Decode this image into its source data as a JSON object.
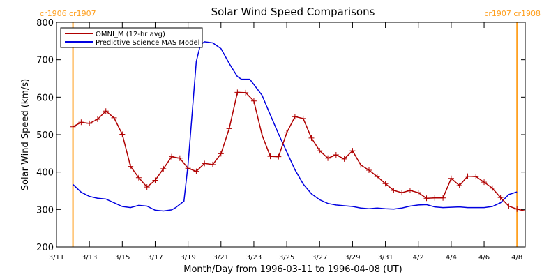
{
  "chart_data": {
    "type": "line",
    "title": "Solar Wind Speed Comparisons",
    "xlabel": "Month/Day from 1996-03-11 to 1996-04-08 (UT)",
    "ylabel": "Solar Wind Speed (km/s)",
    "xlim": [
      "1996-03-11",
      "1996-04-08T12:00"
    ],
    "ylim": [
      200,
      800
    ],
    "grid": false,
    "legend_position": "top-left",
    "x_ticks": [
      {
        "x": "1996-03-11",
        "label": "3/11"
      },
      {
        "x": "1996-03-13",
        "label": "3/13"
      },
      {
        "x": "1996-03-15",
        "label": "3/15"
      },
      {
        "x": "1996-03-17",
        "label": "3/17"
      },
      {
        "x": "1996-03-19",
        "label": "3/19"
      },
      {
        "x": "1996-03-21",
        "label": "3/21"
      },
      {
        "x": "1996-03-23",
        "label": "3/23"
      },
      {
        "x": "1996-03-25",
        "label": "3/25"
      },
      {
        "x": "1996-03-27",
        "label": "3/27"
      },
      {
        "x": "1996-03-29",
        "label": "3/29"
      },
      {
        "x": "1996-03-31",
        "label": "3/31"
      },
      {
        "x": "1996-04-02",
        "label": "4/2"
      },
      {
        "x": "1996-04-04",
        "label": "4/4"
      },
      {
        "x": "1996-04-06",
        "label": "4/6"
      },
      {
        "x": "1996-04-08",
        "label": "4/8"
      }
    ],
    "y_ticks": [
      200,
      300,
      400,
      500,
      600,
      700,
      800
    ],
    "markers": [
      {
        "x": "1996-03-12T00:00",
        "label": "cr1906 cr1907",
        "color": "#ffa020"
      },
      {
        "x": "1996-04-08T00:00",
        "label": "cr1907 cr1908",
        "color": "#ffa020"
      }
    ],
    "series": [
      {
        "name": "OMNI_M (12-hr avg)",
        "color": "#b00000",
        "marker": "plus",
        "points": [
          [
            "1996-03-12T00:00",
            521
          ],
          [
            "1996-03-12T12:00",
            533
          ],
          [
            "1996-03-13T00:00",
            530
          ],
          [
            "1996-03-13T12:00",
            541
          ],
          [
            "1996-03-14T00:00",
            563
          ],
          [
            "1996-03-14T12:00",
            545
          ],
          [
            "1996-03-15T00:00",
            501
          ],
          [
            "1996-03-15T12:00",
            415
          ],
          [
            "1996-03-16T00:00",
            385
          ],
          [
            "1996-03-16T12:00",
            360
          ],
          [
            "1996-03-17T00:00",
            378
          ],
          [
            "1996-03-17T12:00",
            409
          ],
          [
            "1996-03-18T00:00",
            441
          ],
          [
            "1996-03-18T12:00",
            437
          ],
          [
            "1996-03-19T00:00",
            410
          ],
          [
            "1996-03-19T12:00",
            402
          ],
          [
            "1996-03-20T00:00",
            423
          ],
          [
            "1996-03-20T12:00",
            420
          ],
          [
            "1996-03-21T00:00",
            449
          ],
          [
            "1996-03-21T12:00",
            516
          ],
          [
            "1996-03-22T00:00",
            613
          ],
          [
            "1996-03-22T12:00",
            612
          ],
          [
            "1996-03-23T00:00",
            590
          ],
          [
            "1996-03-23T12:00",
            499
          ],
          [
            "1996-03-24T00:00",
            442
          ],
          [
            "1996-03-24T12:00",
            441
          ],
          [
            "1996-03-25T00:00",
            505
          ],
          [
            "1996-03-25T12:00",
            548
          ],
          [
            "1996-03-26T00:00",
            543
          ],
          [
            "1996-03-26T12:00",
            491
          ],
          [
            "1996-03-27T00:00",
            457
          ],
          [
            "1996-03-27T12:00",
            437
          ],
          [
            "1996-03-28T00:00",
            446
          ],
          [
            "1996-03-28T12:00",
            435
          ],
          [
            "1996-03-29T00:00",
            457
          ],
          [
            "1996-03-29T12:00",
            419
          ],
          [
            "1996-03-30T00:00",
            405
          ],
          [
            "1996-03-30T12:00",
            388
          ],
          [
            "1996-03-31T00:00",
            369
          ],
          [
            "1996-03-31T12:00",
            351
          ],
          [
            "1996-04-01T00:00",
            345
          ],
          [
            "1996-04-01T12:00",
            351
          ],
          [
            "1996-04-02T00:00",
            345
          ],
          [
            "1996-04-02T12:00",
            330
          ],
          [
            "1996-04-03T00:00",
            331
          ],
          [
            "1996-04-03T12:00",
            331
          ],
          [
            "1996-04-04T00:00",
            383
          ],
          [
            "1996-04-04T12:00",
            364
          ],
          [
            "1996-04-05T00:00",
            389
          ],
          [
            "1996-04-05T12:00",
            388
          ],
          [
            "1996-04-06T00:00",
            373
          ],
          [
            "1996-04-06T12:00",
            357
          ],
          [
            "1996-04-07T00:00",
            332
          ],
          [
            "1996-04-07T12:00",
            309
          ],
          [
            "1996-04-08T00:00",
            301
          ],
          [
            "1996-04-08T12:00",
            296
          ]
        ]
      },
      {
        "name": "Predictive Science MAS Model",
        "color": "#0000e0",
        "marker": "none",
        "points": [
          [
            "1996-03-12T00:00",
            367
          ],
          [
            "1996-03-12T12:00",
            346
          ],
          [
            "1996-03-13T00:00",
            335
          ],
          [
            "1996-03-13T12:00",
            330
          ],
          [
            "1996-03-14T00:00",
            328
          ],
          [
            "1996-03-14T12:00",
            318
          ],
          [
            "1996-03-15T00:00",
            308
          ],
          [
            "1996-03-15T12:00",
            305
          ],
          [
            "1996-03-16T00:00",
            311
          ],
          [
            "1996-03-16T12:00",
            309
          ],
          [
            "1996-03-17T00:00",
            298
          ],
          [
            "1996-03-17T12:00",
            296
          ],
          [
            "1996-03-18T00:00",
            299
          ],
          [
            "1996-03-18T06:00",
            305
          ],
          [
            "1996-03-18T18:00",
            322
          ],
          [
            "1996-03-19T00:00",
            420
          ],
          [
            "1996-03-19T12:00",
            695
          ],
          [
            "1996-03-19T18:00",
            740
          ],
          [
            "1996-03-20T00:00",
            748
          ],
          [
            "1996-03-20T12:00",
            745
          ],
          [
            "1996-03-21T00:00",
            730
          ],
          [
            "1996-03-21T12:00",
            690
          ],
          [
            "1996-03-22T00:00",
            655
          ],
          [
            "1996-03-22T06:00",
            648
          ],
          [
            "1996-03-22T18:00",
            648
          ],
          [
            "1996-03-23T00:00",
            634
          ],
          [
            "1996-03-23T12:00",
            605
          ],
          [
            "1996-03-24T00:00",
            553
          ],
          [
            "1996-03-24T12:00",
            502
          ],
          [
            "1996-03-25T00:00",
            454
          ],
          [
            "1996-03-25T12:00",
            406
          ],
          [
            "1996-03-26T00:00",
            368
          ],
          [
            "1996-03-26T12:00",
            342
          ],
          [
            "1996-03-27T00:00",
            326
          ],
          [
            "1996-03-27T12:00",
            316
          ],
          [
            "1996-03-28T00:00",
            312
          ],
          [
            "1996-03-28T12:00",
            310
          ],
          [
            "1996-03-29T00:00",
            308
          ],
          [
            "1996-03-29T12:00",
            304
          ],
          [
            "1996-03-30T00:00",
            302
          ],
          [
            "1996-03-30T12:00",
            304
          ],
          [
            "1996-03-31T00:00",
            302
          ],
          [
            "1996-03-31T12:00",
            301
          ],
          [
            "1996-04-01T00:00",
            304
          ],
          [
            "1996-04-01T12:00",
            309
          ],
          [
            "1996-04-02T00:00",
            312
          ],
          [
            "1996-04-02T12:00",
            313
          ],
          [
            "1996-04-03T00:00",
            307
          ],
          [
            "1996-04-03T12:00",
            305
          ],
          [
            "1996-04-04T00:00",
            306
          ],
          [
            "1996-04-04T12:00",
            307
          ],
          [
            "1996-04-05T00:00",
            305
          ],
          [
            "1996-04-05T12:00",
            305
          ],
          [
            "1996-04-06T00:00",
            305
          ],
          [
            "1996-04-06T12:00",
            308
          ],
          [
            "1996-04-07T00:00",
            318
          ],
          [
            "1996-04-07T12:00",
            340
          ],
          [
            "1996-04-08T00:00",
            347
          ]
        ]
      }
    ]
  }
}
